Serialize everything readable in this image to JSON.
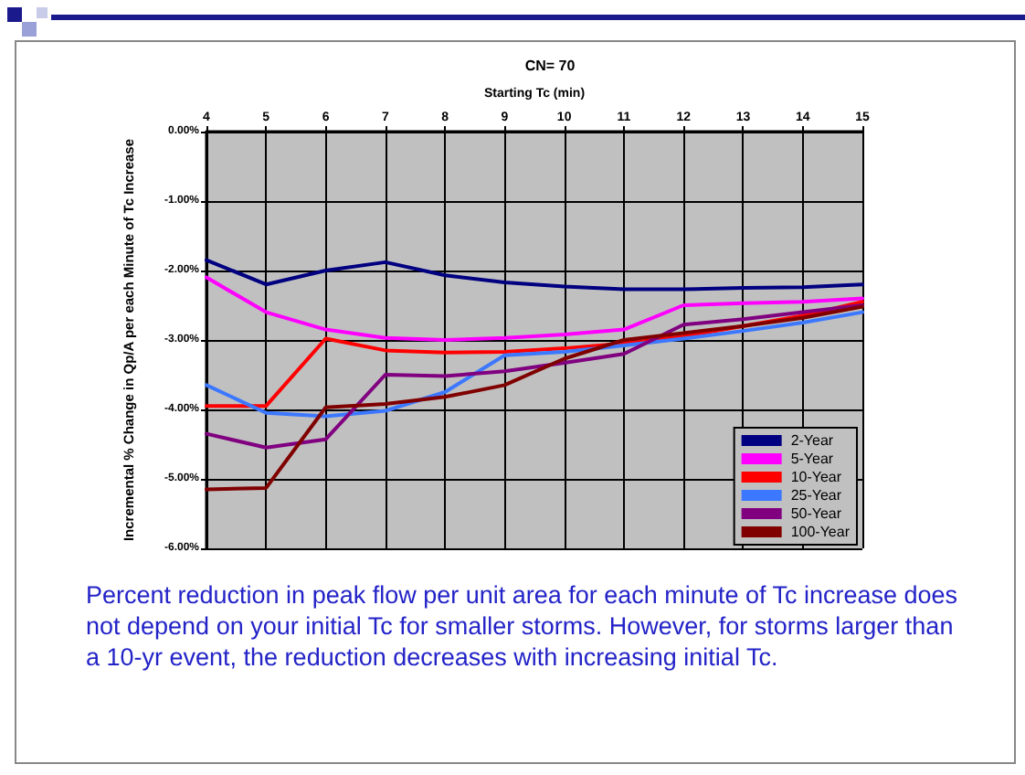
{
  "chart_data": {
    "type": "line",
    "title": "CN= 70",
    "xlabel": "Starting Tc (min)",
    "ylabel": "Incremental % Change in Qp/A per each Minute of Tc Increase",
    "x": [
      4,
      5,
      6,
      7,
      8,
      9,
      10,
      11,
      12,
      13,
      14,
      15
    ],
    "series": [
      {
        "name": "2-Year",
        "color": "#000080",
        "values": [
          -1.85,
          -2.2,
          -2.0,
          -1.88,
          -2.07,
          -2.17,
          -2.23,
          -2.27,
          -2.27,
          -2.25,
          -2.24,
          -2.2
        ]
      },
      {
        "name": "5-Year",
        "color": "#ff00ff",
        "values": [
          -2.1,
          -2.6,
          -2.85,
          -2.97,
          -3.0,
          -2.97,
          -2.92,
          -2.85,
          -2.5,
          -2.47,
          -2.45,
          -2.4
        ]
      },
      {
        "name": "10-Year",
        "color": "#ff0000",
        "values": [
          -3.95,
          -3.95,
          -2.98,
          -3.15,
          -3.18,
          -3.17,
          -3.12,
          -3.05,
          -2.95,
          -2.8,
          -2.65,
          -2.45
        ]
      },
      {
        "name": "25-Year",
        "color": "#3c78ff",
        "values": [
          -3.65,
          -4.05,
          -4.1,
          -4.02,
          -3.75,
          -3.22,
          -3.17,
          -3.08,
          -2.98,
          -2.87,
          -2.75,
          -2.6
        ]
      },
      {
        "name": "50-Year",
        "color": "#800080",
        "values": [
          -4.35,
          -4.55,
          -4.43,
          -3.5,
          -3.52,
          -3.45,
          -3.33,
          -3.2,
          -2.78,
          -2.7,
          -2.6,
          -2.5
        ]
      },
      {
        "name": "100-Year",
        "color": "#800000",
        "values": [
          -5.15,
          -5.13,
          -3.97,
          -3.92,
          -3.82,
          -3.65,
          -3.27,
          -3.0,
          -2.9,
          -2.8,
          -2.68,
          -2.52
        ]
      }
    ],
    "xlim": [
      4,
      15
    ],
    "xticks": [
      4,
      5,
      6,
      7,
      8,
      9,
      10,
      11,
      12,
      13,
      14,
      15
    ],
    "ylim": [
      -6,
      0
    ],
    "yticks": [
      {
        "value": 0,
        "label": "0.00%"
      },
      {
        "value": -1,
        "label": "-1.00%"
      },
      {
        "value": -2,
        "label": "-2.00%"
      },
      {
        "value": -3,
        "label": "-3.00%"
      },
      {
        "value": -4,
        "label": "-4.00%"
      },
      {
        "value": -5,
        "label": "-5.00%"
      },
      {
        "value": -6,
        "label": "-6.00%"
      }
    ],
    "grid": true,
    "legend": "bottom right",
    "marker": "none",
    "line_style": "solid",
    "annotations": [
      "Percent reduction in peak flow per unit area for each minute of Tc increase does not depend on your initial Tc for smaller storms. However, for storms larger than a 10-yr event, the reduction decreases with increasing initial Tc."
    ]
  }
}
